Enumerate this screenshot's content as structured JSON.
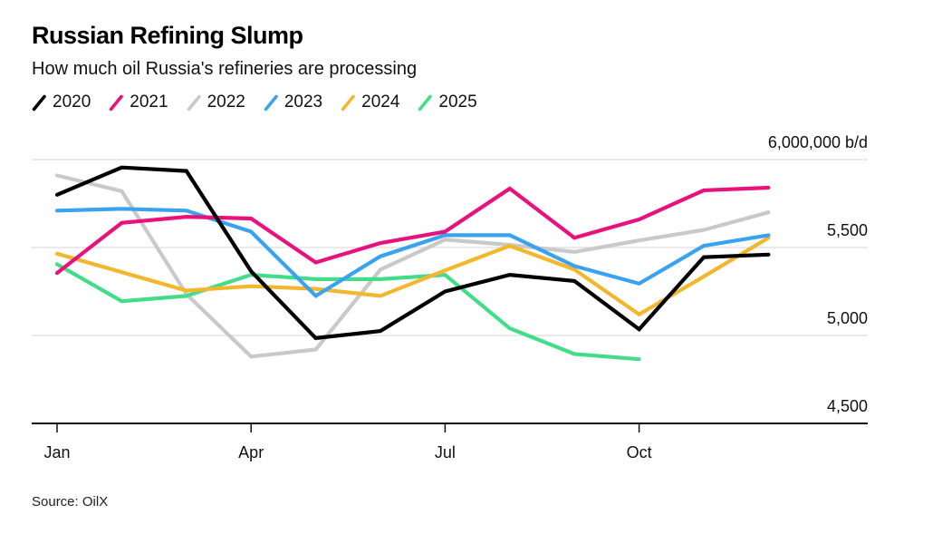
{
  "header": {
    "title": "Russian Refining Slump",
    "subtitle": "How much oil Russia's refineries are processing"
  },
  "legend": [
    {
      "label": "2020",
      "color": "#000000"
    },
    {
      "label": "2021",
      "color": "#e8127c"
    },
    {
      "label": "2022",
      "color": "#c9c9c9"
    },
    {
      "label": "2023",
      "color": "#3aa3ef"
    },
    {
      "label": "2024",
      "color": "#f3b72e"
    },
    {
      "label": "2025",
      "color": "#43dd8a"
    }
  ],
  "source": "Source: OilX",
  "chart_data": {
    "type": "line",
    "categories": [
      "Jan",
      "Feb",
      "Mar",
      "Apr",
      "May",
      "Jun",
      "Jul",
      "Aug",
      "Sep",
      "Oct",
      "Nov",
      "Dec"
    ],
    "x_tick_labels": [
      "Jan",
      "Apr",
      "Jul",
      "Oct"
    ],
    "x_tick_month_indexes": [
      0,
      3,
      6,
      9
    ],
    "ylim": [
      4500,
      6000
    ],
    "unit": "b/d",
    "y_ticks": [
      6000,
      5500,
      5000,
      4500
    ],
    "y_tick_labels": [
      "6,000,000 b/d",
      "5,500",
      "5,000",
      "4,500"
    ],
    "grid": "horizontal",
    "legend_position": "top",
    "series": [
      {
        "name": "2020",
        "color": "#000000",
        "values": [
          5800,
          5955,
          5935,
          5365,
          4985,
          5025,
          5250,
          5345,
          5310,
          5035,
          5445,
          5460
        ]
      },
      {
        "name": "2021",
        "color": "#e8127c",
        "values": [
          5355,
          5640,
          5675,
          5665,
          5415,
          5525,
          5590,
          5835,
          5555,
          5660,
          5825,
          5840
        ]
      },
      {
        "name": "2022",
        "color": "#c9c9c9",
        "values": [
          5910,
          5820,
          5235,
          4880,
          4920,
          5375,
          5545,
          5515,
          5475,
          5540,
          5600,
          5700
        ]
      },
      {
        "name": "2023",
        "color": "#3aa3ef",
        "values": [
          5710,
          5720,
          5710,
          5590,
          5225,
          5450,
          5570,
          5570,
          5395,
          5295,
          5510,
          5570
        ]
      },
      {
        "name": "2024",
        "color": "#f3b72e",
        "values": [
          5465,
          5360,
          5255,
          5280,
          5265,
          5225,
          5370,
          5510,
          5375,
          5120,
          5335,
          5555
        ]
      },
      {
        "name": "2025",
        "color": "#43dd8a",
        "values": [
          5405,
          5195,
          5225,
          5345,
          5320,
          5320,
          5345,
          5040,
          4895,
          4865
        ]
      }
    ]
  }
}
